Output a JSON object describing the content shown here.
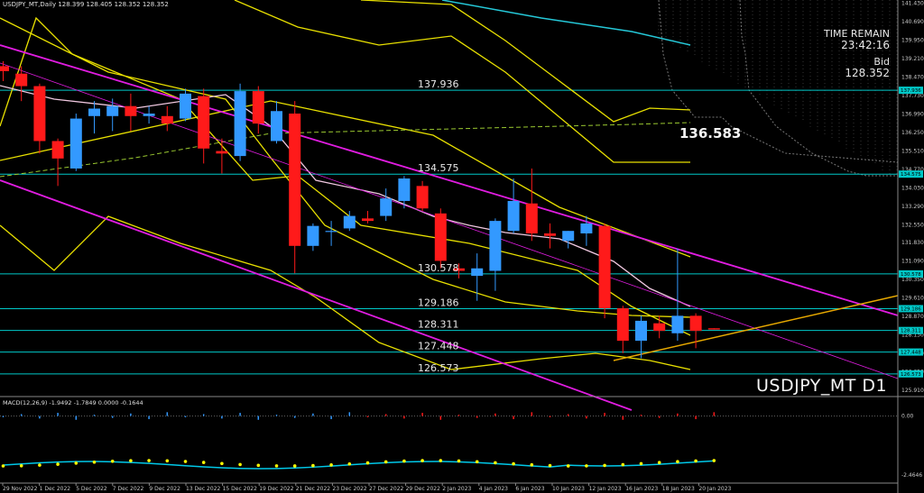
{
  "header": {
    "symbol_line": "USDJPY_MT,Daily  128.399 128.405 128.352 128.352",
    "indicator_line": "MACD(12,26,9) -1.9492 -1.7849 0.0000 -0.1644"
  },
  "info_panel": {
    "time_label": "TIME REMAIN",
    "time_value": "23:42:16",
    "bid_label": "Bid",
    "bid_value": "128.352"
  },
  "big_price": "136.583",
  "watermark": "USDJPY_MT D1",
  "colors": {
    "background": "#000000",
    "bull": "#3399ff",
    "bear": "#ff1a1a",
    "horizontal_level": "#00c8c8",
    "channel": "#e01ce0",
    "envelope": "#e8e000",
    "trendline": "#e6a800",
    "ma_white": "#f0c8e0",
    "ma_green": "#9ac830",
    "macd_line": "#00c8e8",
    "signal_dots": "#ffff00",
    "axis_text": "#c8c8c8"
  },
  "price_axis_labels": [
    "141.430",
    "140.690",
    "139.950",
    "139.210",
    "138.470",
    "137.730",
    "136.990",
    "136.250",
    "135.510",
    "134.770",
    "134.030",
    "133.290",
    "132.550",
    "131.830",
    "131.090",
    "130.350",
    "129.610",
    "128.870",
    "128.130",
    "127.390",
    "126.650",
    "125.910"
  ],
  "level_tags": [
    "137.936",
    "134.575",
    "130.578",
    "129.186",
    "128.311",
    "127.448",
    "126.573"
  ],
  "macd_axis_labels": [
    "0.00",
    "-2.4646"
  ],
  "chart_data": {
    "type": "candlestick",
    "title": "USDJPY_MT,Daily",
    "ylim": [
      125.7,
      141.55
    ],
    "x_tick_labels": [
      "29 Nov 2022",
      "1 Dec 2022",
      "5 Dec 2022",
      "7 Dec 2022",
      "9 Dec 2022",
      "13 Dec 2022",
      "15 Dec 2022",
      "19 Dec 2022",
      "21 Dec 2022",
      "23 Dec 2022",
      "27 Dec 2022",
      "29 Dec 2022",
      "2 Jan 2023",
      "4 Jan 2023",
      "6 Jan 2023",
      "10 Jan 2023",
      "12 Jan 2023",
      "16 Jan 2023",
      "18 Jan 2023",
      "20 Jan 2023"
    ],
    "candles": [
      {
        "d": "2022-11-28",
        "o": 138.9,
        "h": 139.1,
        "l": 138.3,
        "c": 138.7
      },
      {
        "d": "2022-11-29",
        "o": 138.6,
        "h": 138.9,
        "l": 137.5,
        "c": 138.1
      },
      {
        "d": "2022-11-30",
        "o": 138.1,
        "h": 138.2,
        "l": 135.4,
        "c": 135.9
      },
      {
        "d": "2022-12-01",
        "o": 135.9,
        "h": 136.0,
        "l": 134.1,
        "c": 135.2
      },
      {
        "d": "2022-12-02",
        "o": 134.8,
        "h": 137.0,
        "l": 134.7,
        "c": 136.8
      },
      {
        "d": "2022-12-05",
        "o": 136.9,
        "h": 137.5,
        "l": 136.2,
        "c": 137.2
      },
      {
        "d": "2022-12-06",
        "o": 136.9,
        "h": 137.6,
        "l": 136.3,
        "c": 137.3
      },
      {
        "d": "2022-12-07",
        "o": 137.3,
        "h": 137.8,
        "l": 136.3,
        "c": 136.9
      },
      {
        "d": "2022-12-08",
        "o": 136.9,
        "h": 137.3,
        "l": 136.6,
        "c": 137.0
      },
      {
        "d": "2022-12-09",
        "o": 136.9,
        "h": 137.3,
        "l": 136.3,
        "c": 136.6
      },
      {
        "d": "2022-12-12",
        "o": 136.8,
        "h": 138.0,
        "l": 136.7,
        "c": 137.8
      },
      {
        "d": "2022-12-13",
        "o": 137.7,
        "h": 138.0,
        "l": 135.0,
        "c": 135.6
      },
      {
        "d": "2022-12-14",
        "o": 135.5,
        "h": 136.0,
        "l": 134.6,
        "c": 135.4
      },
      {
        "d": "2022-12-15",
        "o": 135.3,
        "h": 138.2,
        "l": 135.1,
        "c": 137.9
      },
      {
        "d": "2022-12-16",
        "o": 137.9,
        "h": 138.1,
        "l": 136.2,
        "c": 136.6
      },
      {
        "d": "2022-12-19",
        "o": 135.9,
        "h": 137.5,
        "l": 135.8,
        "c": 137.1
      },
      {
        "d": "2022-12-20",
        "o": 137.0,
        "h": 137.5,
        "l": 130.6,
        "c": 131.7
      },
      {
        "d": "2022-12-21",
        "o": 131.7,
        "h": 132.6,
        "l": 131.5,
        "c": 132.5
      },
      {
        "d": "2022-12-22",
        "o": 132.3,
        "h": 132.7,
        "l": 131.7,
        "c": 132.3
      },
      {
        "d": "2022-12-23",
        "o": 132.4,
        "h": 133.1,
        "l": 132.3,
        "c": 132.9
      },
      {
        "d": "2022-12-26",
        "o": 132.8,
        "h": 133.1,
        "l": 132.6,
        "c": 132.7
      },
      {
        "d": "2022-12-27",
        "o": 132.9,
        "h": 134.0,
        "l": 132.7,
        "c": 133.6
      },
      {
        "d": "2022-12-28",
        "o": 133.5,
        "h": 134.5,
        "l": 133.2,
        "c": 134.4
      },
      {
        "d": "2022-12-29",
        "o": 134.1,
        "h": 134.3,
        "l": 133.1,
        "c": 133.2
      },
      {
        "d": "2022-12-30",
        "o": 133.0,
        "h": 133.2,
        "l": 130.8,
        "c": 131.1
      },
      {
        "d": "2023-01-02",
        "o": 130.8,
        "h": 131.0,
        "l": 130.4,
        "c": 130.7
      },
      {
        "d": "2023-01-03",
        "o": 130.5,
        "h": 131.4,
        "l": 129.5,
        "c": 130.8
      },
      {
        "d": "2023-01-04",
        "o": 130.7,
        "h": 132.8,
        "l": 129.9,
        "c": 132.7
      },
      {
        "d": "2023-01-05",
        "o": 132.3,
        "h": 134.4,
        "l": 132.2,
        "c": 133.5
      },
      {
        "d": "2023-01-06",
        "o": 133.4,
        "h": 134.8,
        "l": 131.9,
        "c": 132.2
      },
      {
        "d": "2023-01-09",
        "o": 132.2,
        "h": 132.6,
        "l": 131.6,
        "c": 132.1
      },
      {
        "d": "2023-01-10",
        "o": 131.9,
        "h": 132.3,
        "l": 131.6,
        "c": 132.3
      },
      {
        "d": "2023-01-11",
        "o": 132.2,
        "h": 132.9,
        "l": 131.7,
        "c": 132.6
      },
      {
        "d": "2023-01-12",
        "o": 132.5,
        "h": 132.6,
        "l": 128.8,
        "c": 129.2
      },
      {
        "d": "2023-01-13",
        "o": 129.2,
        "h": 129.3,
        "l": 127.4,
        "c": 127.9
      },
      {
        "d": "2023-01-16",
        "o": 127.9,
        "h": 128.9,
        "l": 127.2,
        "c": 128.7
      },
      {
        "d": "2023-01-17",
        "o": 128.6,
        "h": 128.9,
        "l": 128.0,
        "c": 128.3
      },
      {
        "d": "2023-01-18",
        "o": 128.2,
        "h": 131.6,
        "l": 127.9,
        "c": 128.9
      },
      {
        "d": "2023-01-19",
        "o": 128.9,
        "h": 129.0,
        "l": 127.6,
        "c": 128.3
      },
      {
        "d": "2023-01-20",
        "o": 128.4,
        "h": 128.4,
        "l": 128.35,
        "c": 128.35
      }
    ],
    "levels": [
      137.936,
      134.575,
      130.578,
      129.186,
      128.311,
      127.448,
      126.573
    ],
    "macd": {
      "ylim": [
        -2.65,
        0.35
      ]
    }
  }
}
